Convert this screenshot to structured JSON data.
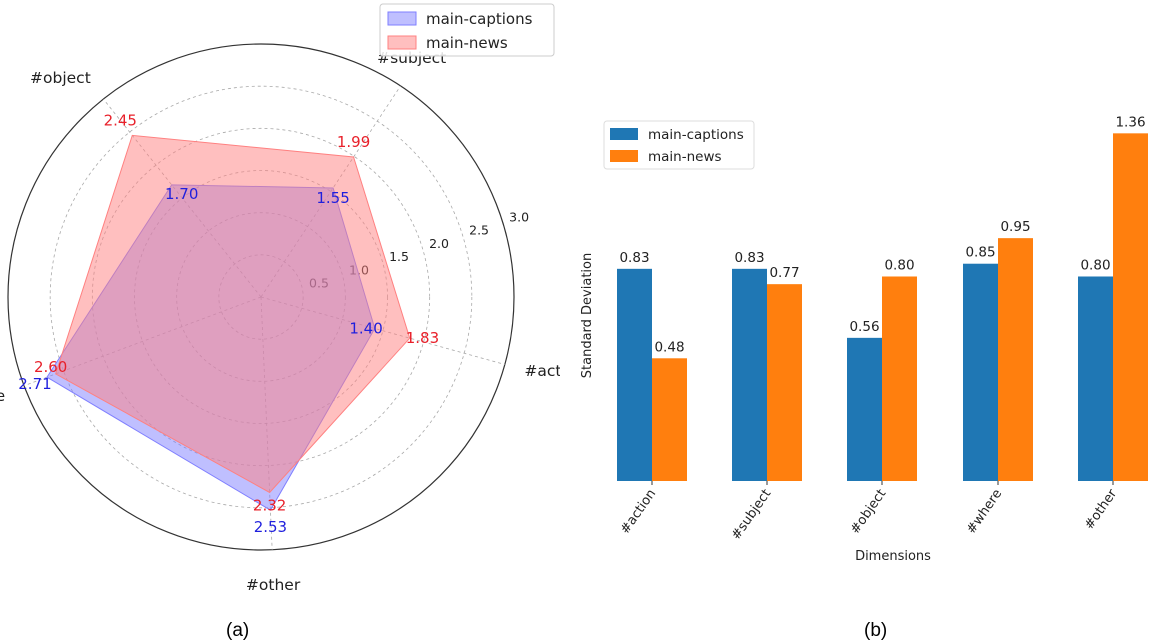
{
  "panels": {
    "a": "(a)",
    "b": "(b)"
  },
  "chart_data": [
    {
      "type": "radar",
      "axes": [
        "#action",
        "#subject",
        "#object",
        "#where",
        "#other"
      ],
      "rlim": [
        0,
        3.0
      ],
      "rticks": [
        0.5,
        1.0,
        1.5,
        2.0,
        2.5,
        3.0
      ],
      "rtick_labels": [
        "0.5",
        "1.0",
        "1.5",
        "2.0",
        "2.5",
        "3.0"
      ],
      "grid": true,
      "legend": "top-right",
      "series": [
        {
          "name": "main-captions",
          "values": [
            1.4,
            1.55,
            1.7,
            2.71,
            2.53
          ],
          "labels": [
            "1.40",
            "1.55",
            "1.70",
            "2.71",
            "2.53"
          ],
          "color": "#7f7fff",
          "label_color": "#1f1fdd"
        },
        {
          "name": "main-news",
          "values": [
            1.83,
            1.99,
            2.45,
            2.6,
            2.32
          ],
          "labels": [
            "1.83",
            "1.99",
            "2.45",
            "2.60",
            "2.32"
          ],
          "color": "#ff8080",
          "label_color": "#e8202a"
        }
      ]
    },
    {
      "type": "bar",
      "categories": [
        "#action",
        "#subject",
        "#object",
        "#where",
        "#other"
      ],
      "xlabel": "Dimensions",
      "ylabel": "Standard Deviation",
      "ylim": [
        0,
        1.42
      ],
      "legend": "top-left",
      "grid": false,
      "series": [
        {
          "name": "main-captions",
          "values": [
            0.83,
            0.83,
            0.56,
            0.85,
            0.8
          ],
          "labels": [
            "0.83",
            "0.83",
            "0.56",
            "0.85",
            "0.80"
          ],
          "color": "#1f77b4"
        },
        {
          "name": "main-news",
          "values": [
            0.48,
            0.77,
            0.8,
            0.95,
            1.36
          ],
          "labels": [
            "0.48",
            "0.77",
            "0.80",
            "0.95",
            "1.36"
          ],
          "color": "#ff7f0e"
        }
      ]
    }
  ]
}
